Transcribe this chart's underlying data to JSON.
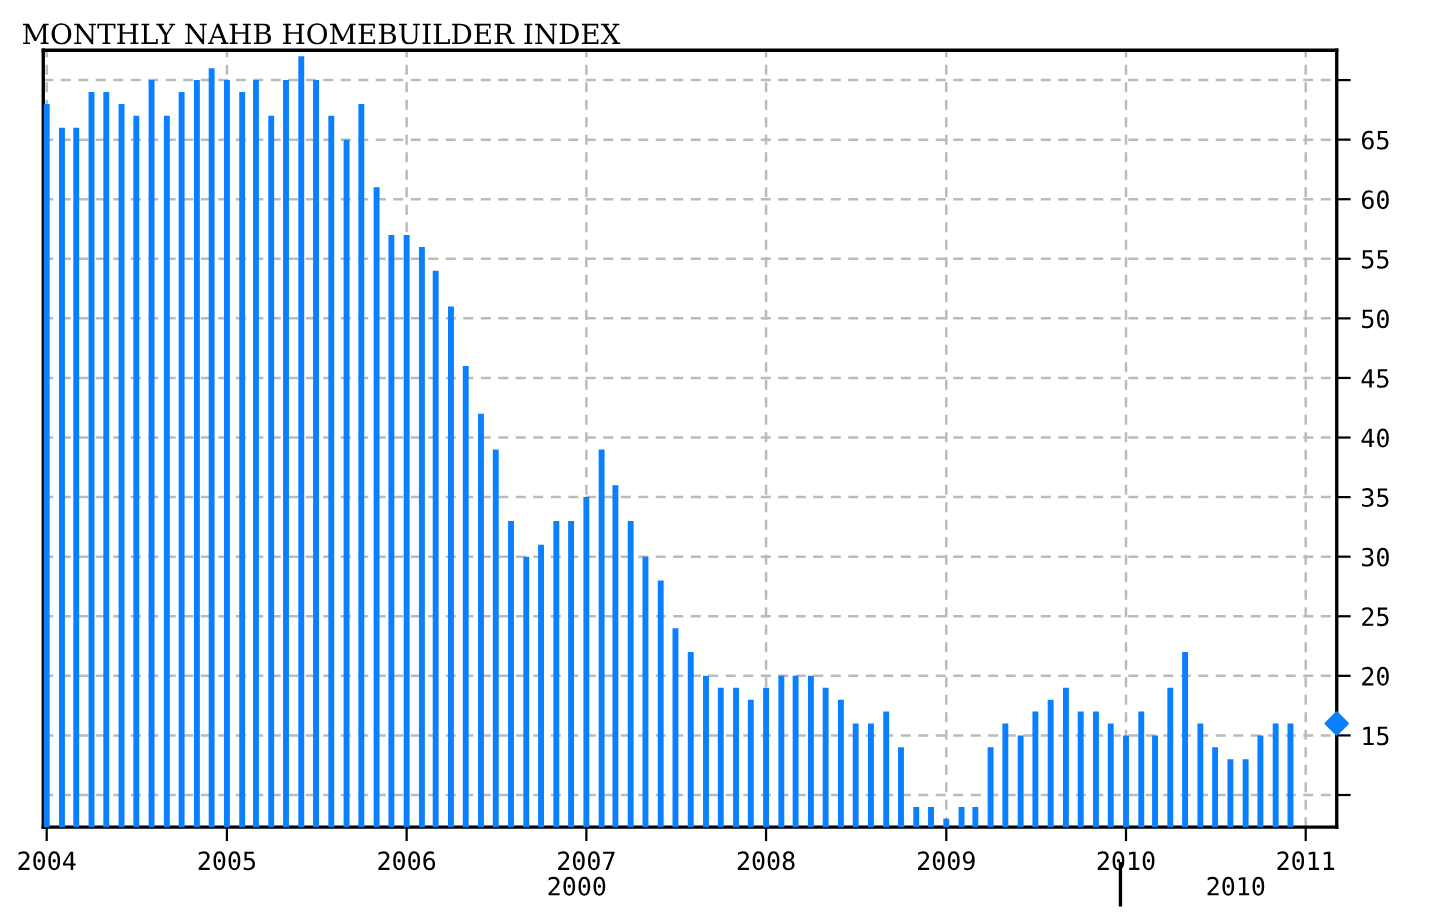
{
  "chart_data": {
    "type": "bar",
    "title": "MONTHLY NAHB HOMEBUILDER INDEX",
    "x": [
      "2004-01",
      "2004-02",
      "2004-03",
      "2004-04",
      "2004-05",
      "2004-06",
      "2004-07",
      "2004-08",
      "2004-09",
      "2004-10",
      "2004-11",
      "2004-12",
      "2005-01",
      "2005-02",
      "2005-03",
      "2005-04",
      "2005-05",
      "2005-06",
      "2005-07",
      "2005-08",
      "2005-09",
      "2005-10",
      "2005-11",
      "2005-12",
      "2006-01",
      "2006-02",
      "2006-03",
      "2006-04",
      "2006-05",
      "2006-06",
      "2006-07",
      "2006-08",
      "2006-09",
      "2006-10",
      "2006-11",
      "2006-12",
      "2007-01",
      "2007-02",
      "2007-03",
      "2007-04",
      "2007-05",
      "2007-06",
      "2007-07",
      "2007-08",
      "2007-09",
      "2007-10",
      "2007-11",
      "2007-12",
      "2008-01",
      "2008-02",
      "2008-03",
      "2008-04",
      "2008-05",
      "2008-06",
      "2008-07",
      "2008-08",
      "2008-09",
      "2008-10",
      "2008-11",
      "2008-12",
      "2009-01",
      "2009-02",
      "2009-03",
      "2009-04",
      "2009-05",
      "2009-06",
      "2009-07",
      "2009-08",
      "2009-09",
      "2009-10",
      "2009-11",
      "2009-12",
      "2010-01",
      "2010-02",
      "2010-03",
      "2010-04",
      "2010-05",
      "2010-06",
      "2010-07",
      "2010-08",
      "2010-09",
      "2010-10",
      "2010-11",
      "2010-12"
    ],
    "series": [
      {
        "color": "#0a80ff",
        "values": [
          68,
          66,
          66,
          69,
          69,
          68,
          67,
          70,
          67,
          69,
          70,
          71,
          70,
          69,
          70,
          67,
          70,
          72,
          70,
          67,
          65,
          68,
          61,
          57,
          57,
          56,
          54,
          51,
          46,
          42,
          39,
          33,
          30,
          31,
          33,
          33,
          35,
          39,
          36,
          33,
          30,
          28,
          24,
          22,
          20,
          19,
          19,
          18,
          19,
          20,
          20,
          20,
          19,
          18,
          16,
          16,
          17,
          14,
          9,
          9,
          8,
          9,
          9,
          14,
          16,
          15,
          17,
          18,
          19,
          17,
          17,
          16,
          15,
          17,
          15,
          19,
          22,
          16,
          14,
          13,
          13,
          15,
          16,
          16
        ]
      },
      {
        "type": "scatter",
        "color": "#0a80ff",
        "marker": "diamond",
        "x": [
          "2011-03-05"
        ],
        "values": [
          16
        ]
      }
    ],
    "xlim": [
      "2003-12-25",
      "2011-03-05"
    ],
    "xticks": [
      "2004",
      "2005",
      "2006",
      "2007",
      "2008",
      "2009",
      "2010",
      "2011"
    ],
    "ylim": [
      7.3,
      72.5
    ],
    "yticks": [
      {
        "value": 10,
        "label": null
      },
      15,
      20,
      25,
      30,
      35,
      40,
      45,
      50,
      55,
      60,
      65,
      {
        "value": 70,
        "label": null
      }
    ],
    "grid": true,
    "legend": false,
    "annotations": [
      "2000",
      "2010"
    ]
  }
}
